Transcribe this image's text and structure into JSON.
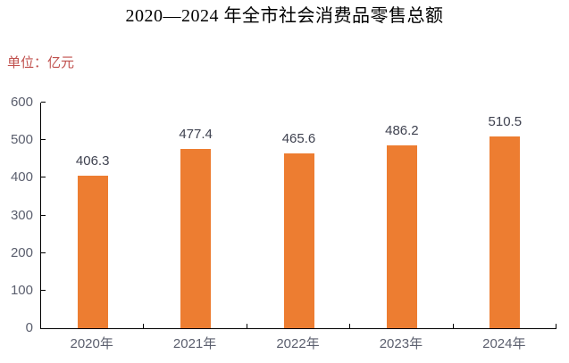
{
  "chart_data": {
    "type": "bar",
    "title": "2020—2024 年全市社会消费品零售总额",
    "unit_label": "单位：亿元",
    "categories": [
      "2020年",
      "2021年",
      "2022年",
      "2023年",
      "2024年"
    ],
    "values": [
      406.3,
      477.4,
      465.6,
      486.2,
      510.5
    ],
    "data_labels": [
      "406.3",
      "477.4",
      "465.6",
      "486.2",
      "510.5"
    ],
    "xlabel": "",
    "ylabel": "",
    "ylim": [
      0,
      600
    ],
    "ytick_step": 100,
    "yticks": [
      0,
      100,
      200,
      300,
      400,
      500,
      600
    ],
    "grid": false,
    "legend": "none",
    "data_labels_position": "outside-end"
  },
  "colors": {
    "bar": "#ED7D31",
    "axis_line": "#000000",
    "axis_tick_label": "#5B5F6E",
    "data_label": "#3F4250",
    "unit_text": "#C0504D",
    "title_text": "#000000",
    "background": "#FFFFFF"
  }
}
